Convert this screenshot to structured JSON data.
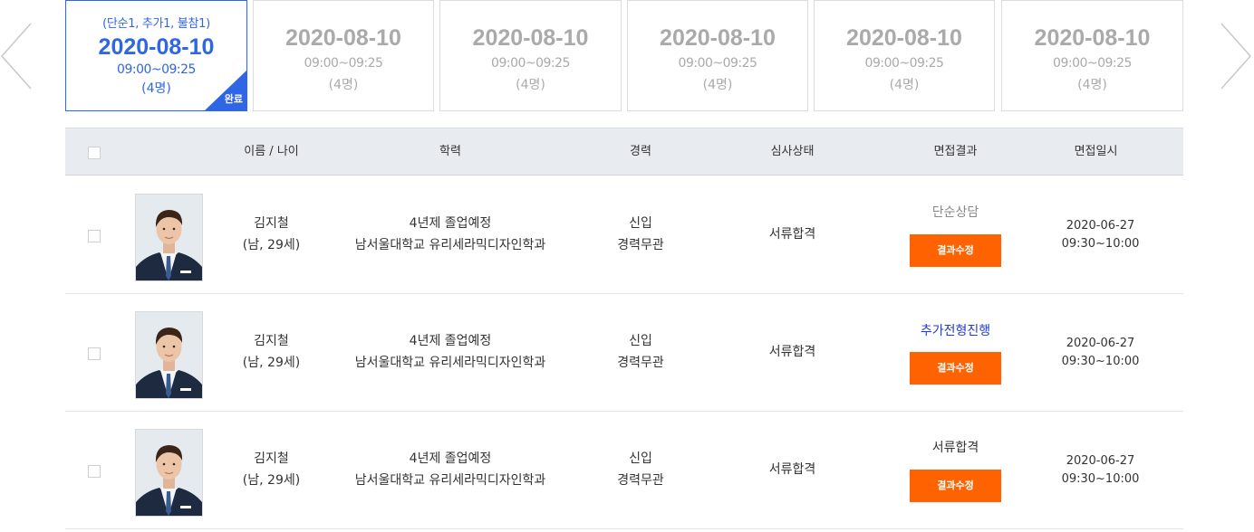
{
  "date_cards": [
    {
      "sub": "(단순1, 추가1, 불참1)",
      "date": "2020-08-10",
      "time": "09:00~09:25",
      "count": "(4명)",
      "badge": "완료"
    },
    {
      "date": "2020-08-10",
      "time": "09:00~09:25",
      "count": "(4명)"
    },
    {
      "date": "2020-08-10",
      "time": "09:00~09:25",
      "count": "(4명)"
    },
    {
      "date": "2020-08-10",
      "time": "09:00~09:25",
      "count": "(4명)"
    },
    {
      "date": "2020-08-10",
      "time": "09:00~09:25",
      "count": "(4명)"
    },
    {
      "date": "2020-08-10",
      "time": "09:00~09:25",
      "count": "(4명)"
    }
  ],
  "table": {
    "headers": {
      "name_age": "이름 / 나이",
      "education": "학력",
      "career": "경력",
      "review_status": "심사상태",
      "interview_result": "면접결과",
      "interview_datetime": "면접일시"
    },
    "rows": [
      {
        "name": "김지철",
        "gender_age": "(남, 29세)",
        "edu_status": "4년제 졸업예정",
        "school": "남서울대학교 유리세라믹디자인학과",
        "career1": "신입",
        "career2": "경력무관",
        "review": "서류합격",
        "result": "단순상담",
        "edit_label": "결과수정",
        "date": "2020-06-27",
        "time": "09:30~10:00"
      },
      {
        "name": "김지철",
        "gender_age": "(남, 29세)",
        "edu_status": "4년제 졸업예정",
        "school": "남서울대학교 유리세라믹디자인학과",
        "career1": "신입",
        "career2": "경력무관",
        "review": "서류합격",
        "result": "추가전형진행",
        "edit_label": "결과수정",
        "date": "2020-06-27",
        "time": "09:30~10:00"
      },
      {
        "name": "김지철",
        "gender_age": "(남, 29세)",
        "edu_status": "4년제 졸업예정",
        "school": "남서울대학교 유리세라믹디자인학과",
        "career1": "신입",
        "career2": "경력무관",
        "review": "서류합격",
        "result": "서류합격",
        "edit_label": "결과수정",
        "date": "2020-06-27",
        "time": "09:30~10:00"
      }
    ]
  },
  "colors": {
    "accent": "#2f66e6",
    "button": "#ff6200",
    "header_bg": "#e8ebf0",
    "muted": "#aaaaaa",
    "result_gray": "#888888",
    "result_blue": "#1f3bd3",
    "result_black": "#333333"
  }
}
